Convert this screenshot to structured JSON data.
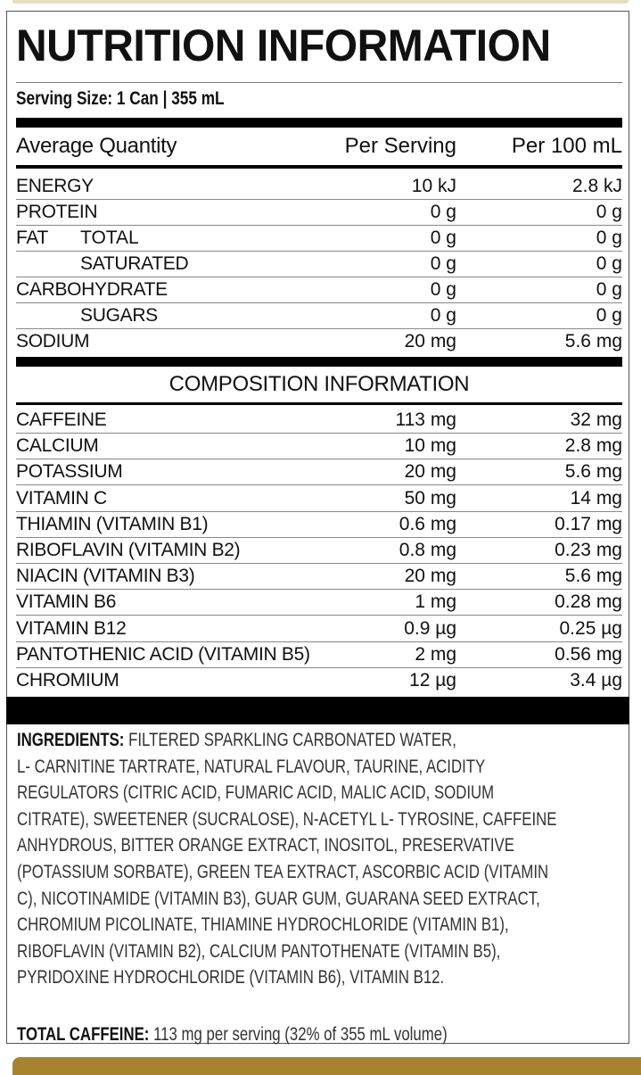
{
  "title": "NUTRITION INFORMATION",
  "serving_size": "Serving Size: 1 Can | 355 mL",
  "header": {
    "label": "Average Quantity",
    "per_serving": "Per Serving",
    "per_100": "Per 100 mL"
  },
  "nutrition": [
    {
      "label": "ENERGY",
      "per_serving": "10 kJ",
      "per_100": "2.8 kJ"
    },
    {
      "label": "PROTEIN",
      "per_serving": "0 g",
      "per_100": "0 g"
    },
    {
      "label": "FAT",
      "sub": "TOTAL",
      "per_serving": "0 g",
      "per_100": "0 g"
    },
    {
      "label": "SATURATED",
      "indent": true,
      "per_serving": "0 g",
      "per_100": "0 g"
    },
    {
      "label": "CARBOHYDRATE",
      "per_serving": "0 g",
      "per_100": "0 g"
    },
    {
      "label": "SUGARS",
      "indent": true,
      "per_serving": "0 g",
      "per_100": "0 g"
    },
    {
      "label": "SODIUM",
      "per_serving": "20 mg",
      "per_100": "5.6 mg"
    }
  ],
  "composition_title": "COMPOSITION INFORMATION",
  "composition": [
    {
      "label": "CAFFEINE",
      "per_serving": "113 mg",
      "per_100": "32 mg"
    },
    {
      "label": "CALCIUM",
      "per_serving": "10 mg",
      "per_100": "2.8 mg"
    },
    {
      "label": "POTASSIUM",
      "per_serving": "20 mg",
      "per_100": "5.6 mg"
    },
    {
      "label": "VITAMIN C",
      "per_serving": "50 mg",
      "per_100": "14 mg"
    },
    {
      "label": "THIAMIN (VITAMIN B1)",
      "per_serving": "0.6 mg",
      "per_100": "0.17 mg"
    },
    {
      "label": "RIBOFLAVIN (VITAMIN B2)",
      "per_serving": "0.8 mg",
      "per_100": "0.23 mg"
    },
    {
      "label": "NIACIN (VITAMIN B3)",
      "per_serving": "20 mg",
      "per_100": "5.6 mg"
    },
    {
      "label": "VITAMIN B6",
      "per_serving": "1 mg",
      "per_100": "0.28 mg"
    },
    {
      "label": "VITAMIN B12",
      "per_serving": "0.9 µg",
      "per_100": "0.25 µg"
    },
    {
      "label": "PANTOTHENIC ACID (VITAMIN B5)",
      "per_serving": "2 mg",
      "per_100": "0.56 mg"
    },
    {
      "label": "CHROMIUM",
      "per_serving": "12 µg",
      "per_100": "3.4 µg"
    }
  ],
  "ingredients": {
    "label": "INGREDIENTS:",
    "lines": [
      " FILTERED SPARKLING CARBONATED WATER,",
      "L- CARNITINE TARTRATE, NATURAL FLAVOUR, TAURINE, ACIDITY",
      "REGULATORS (CITRIC ACID, FUMARIC ACID, MALIC ACID, SODIUM",
      "CITRATE), SWEETENER (SUCRALOSE), N-ACETYL L- TYROSINE, CAFFEINE",
      "ANHYDROUS, BITTER ORANGE EXTRACT, INOSITOL, PRESERVATIVE",
      "(POTASSIUM SORBATE), GREEN TEA EXTRACT, ASCORBIC ACID (VITAMIN",
      "C), NICOTINAMIDE (VITAMIN B3), GUAR GUM, GUARANA SEED EXTRACT,",
      "CHROMIUM PICOLINATE, THIAMINE HYDROCHLORIDE (VITAMIN B1),",
      "RIBOFLAVIN (VITAMIN B2), CALCIUM PANTOTHENATE (VITAMIN B5),",
      "PYRIDOXINE HYDROCHLORIDE (VITAMIN B6), VITAMIN B12."
    ]
  },
  "total_caffeine": {
    "label": "TOTAL CAFFEINE:",
    "text": " 113 mg per serving (32% of 355 mL volume)"
  },
  "colors": {
    "gold": "#a8832f",
    "text": "#111111"
  }
}
